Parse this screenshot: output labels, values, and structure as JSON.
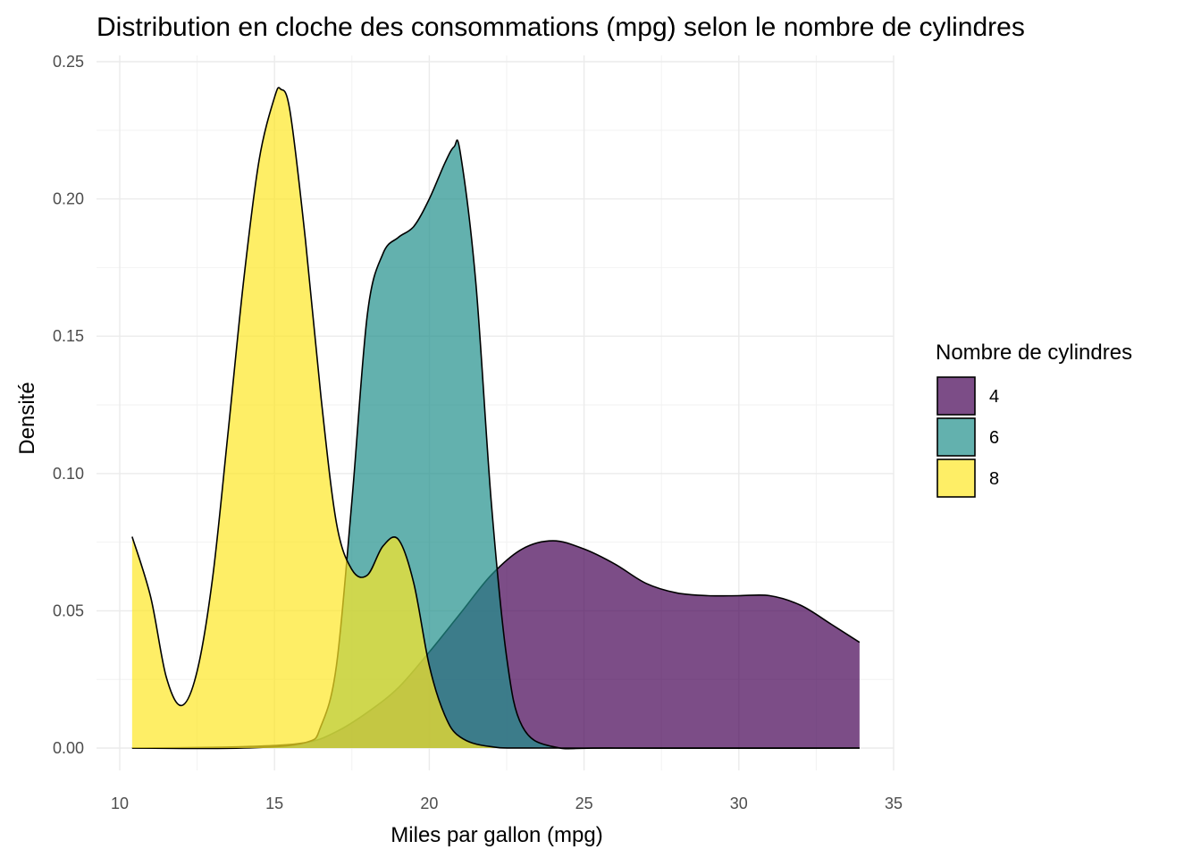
{
  "chart_data": {
    "type": "area",
    "title": "Distribution en cloche des consommations (mpg) selon le nombre de cylindres",
    "xlabel": "Miles par gallon (mpg)",
    "ylabel": "Densité",
    "xlim": [
      10.4,
      33.9
    ],
    "ylim": [
      0,
      0.25
    ],
    "xticks": [
      10,
      15,
      20,
      25,
      30,
      35
    ],
    "xtick_labels": [
      "10",
      "15",
      "20",
      "25",
      "30",
      "35"
    ],
    "yticks": [
      0,
      0.05,
      0.1,
      0.15,
      0.2,
      0.25
    ],
    "ytick_labels": [
      "0.00",
      "0.05",
      "0.10",
      "0.15",
      "0.20",
      "0.25"
    ],
    "grid": true,
    "legend": {
      "title": "Nombre de cylindres",
      "placement": "right",
      "entries": [
        "4",
        "6",
        "8"
      ]
    },
    "series": [
      {
        "name": "4",
        "color": "#440154",
        "x": [
          10.4,
          14,
          16,
          17,
          18,
          19,
          20,
          21,
          22,
          23,
          24,
          25,
          26,
          27,
          28,
          29,
          30,
          31,
          32,
          33,
          33.9
        ],
        "y": [
          0.0,
          0.0005,
          0.002,
          0.006,
          0.013,
          0.022,
          0.035,
          0.049,
          0.063,
          0.0725,
          0.0755,
          0.0725,
          0.067,
          0.06,
          0.0565,
          0.0555,
          0.0555,
          0.0555,
          0.052,
          0.045,
          0.0385
        ]
      },
      {
        "name": "6",
        "color": "#21908C",
        "x": [
          10.4,
          14,
          16,
          16.5,
          17,
          17.5,
          18,
          18.5,
          19,
          19.5,
          20,
          20.5,
          20.8,
          21,
          21.5,
          22,
          22.5,
          23,
          24,
          26,
          33.9
        ],
        "y": [
          0.0,
          0.0,
          0.002,
          0.008,
          0.03,
          0.09,
          0.158,
          0.18,
          0.186,
          0.19,
          0.2,
          0.213,
          0.219,
          0.217,
          0.17,
          0.09,
          0.033,
          0.008,
          0.0005,
          0.0,
          0.0
        ]
      },
      {
        "name": "8",
        "color": "#FDE725",
        "x": [
          10.4,
          11,
          11.5,
          12,
          12.5,
          13,
          13.5,
          14,
          14.5,
          15,
          15.2,
          15.5,
          16,
          16.5,
          17,
          17.5,
          18,
          18.5,
          19,
          19.5,
          20,
          20.5,
          21,
          22,
          24,
          33.9
        ],
        "y": [
          0.077,
          0.055,
          0.026,
          0.0155,
          0.028,
          0.062,
          0.115,
          0.17,
          0.214,
          0.237,
          0.24,
          0.232,
          0.185,
          0.128,
          0.082,
          0.065,
          0.063,
          0.0735,
          0.076,
          0.06,
          0.03,
          0.012,
          0.004,
          0.0005,
          0.0,
          0.0
        ]
      }
    ]
  }
}
